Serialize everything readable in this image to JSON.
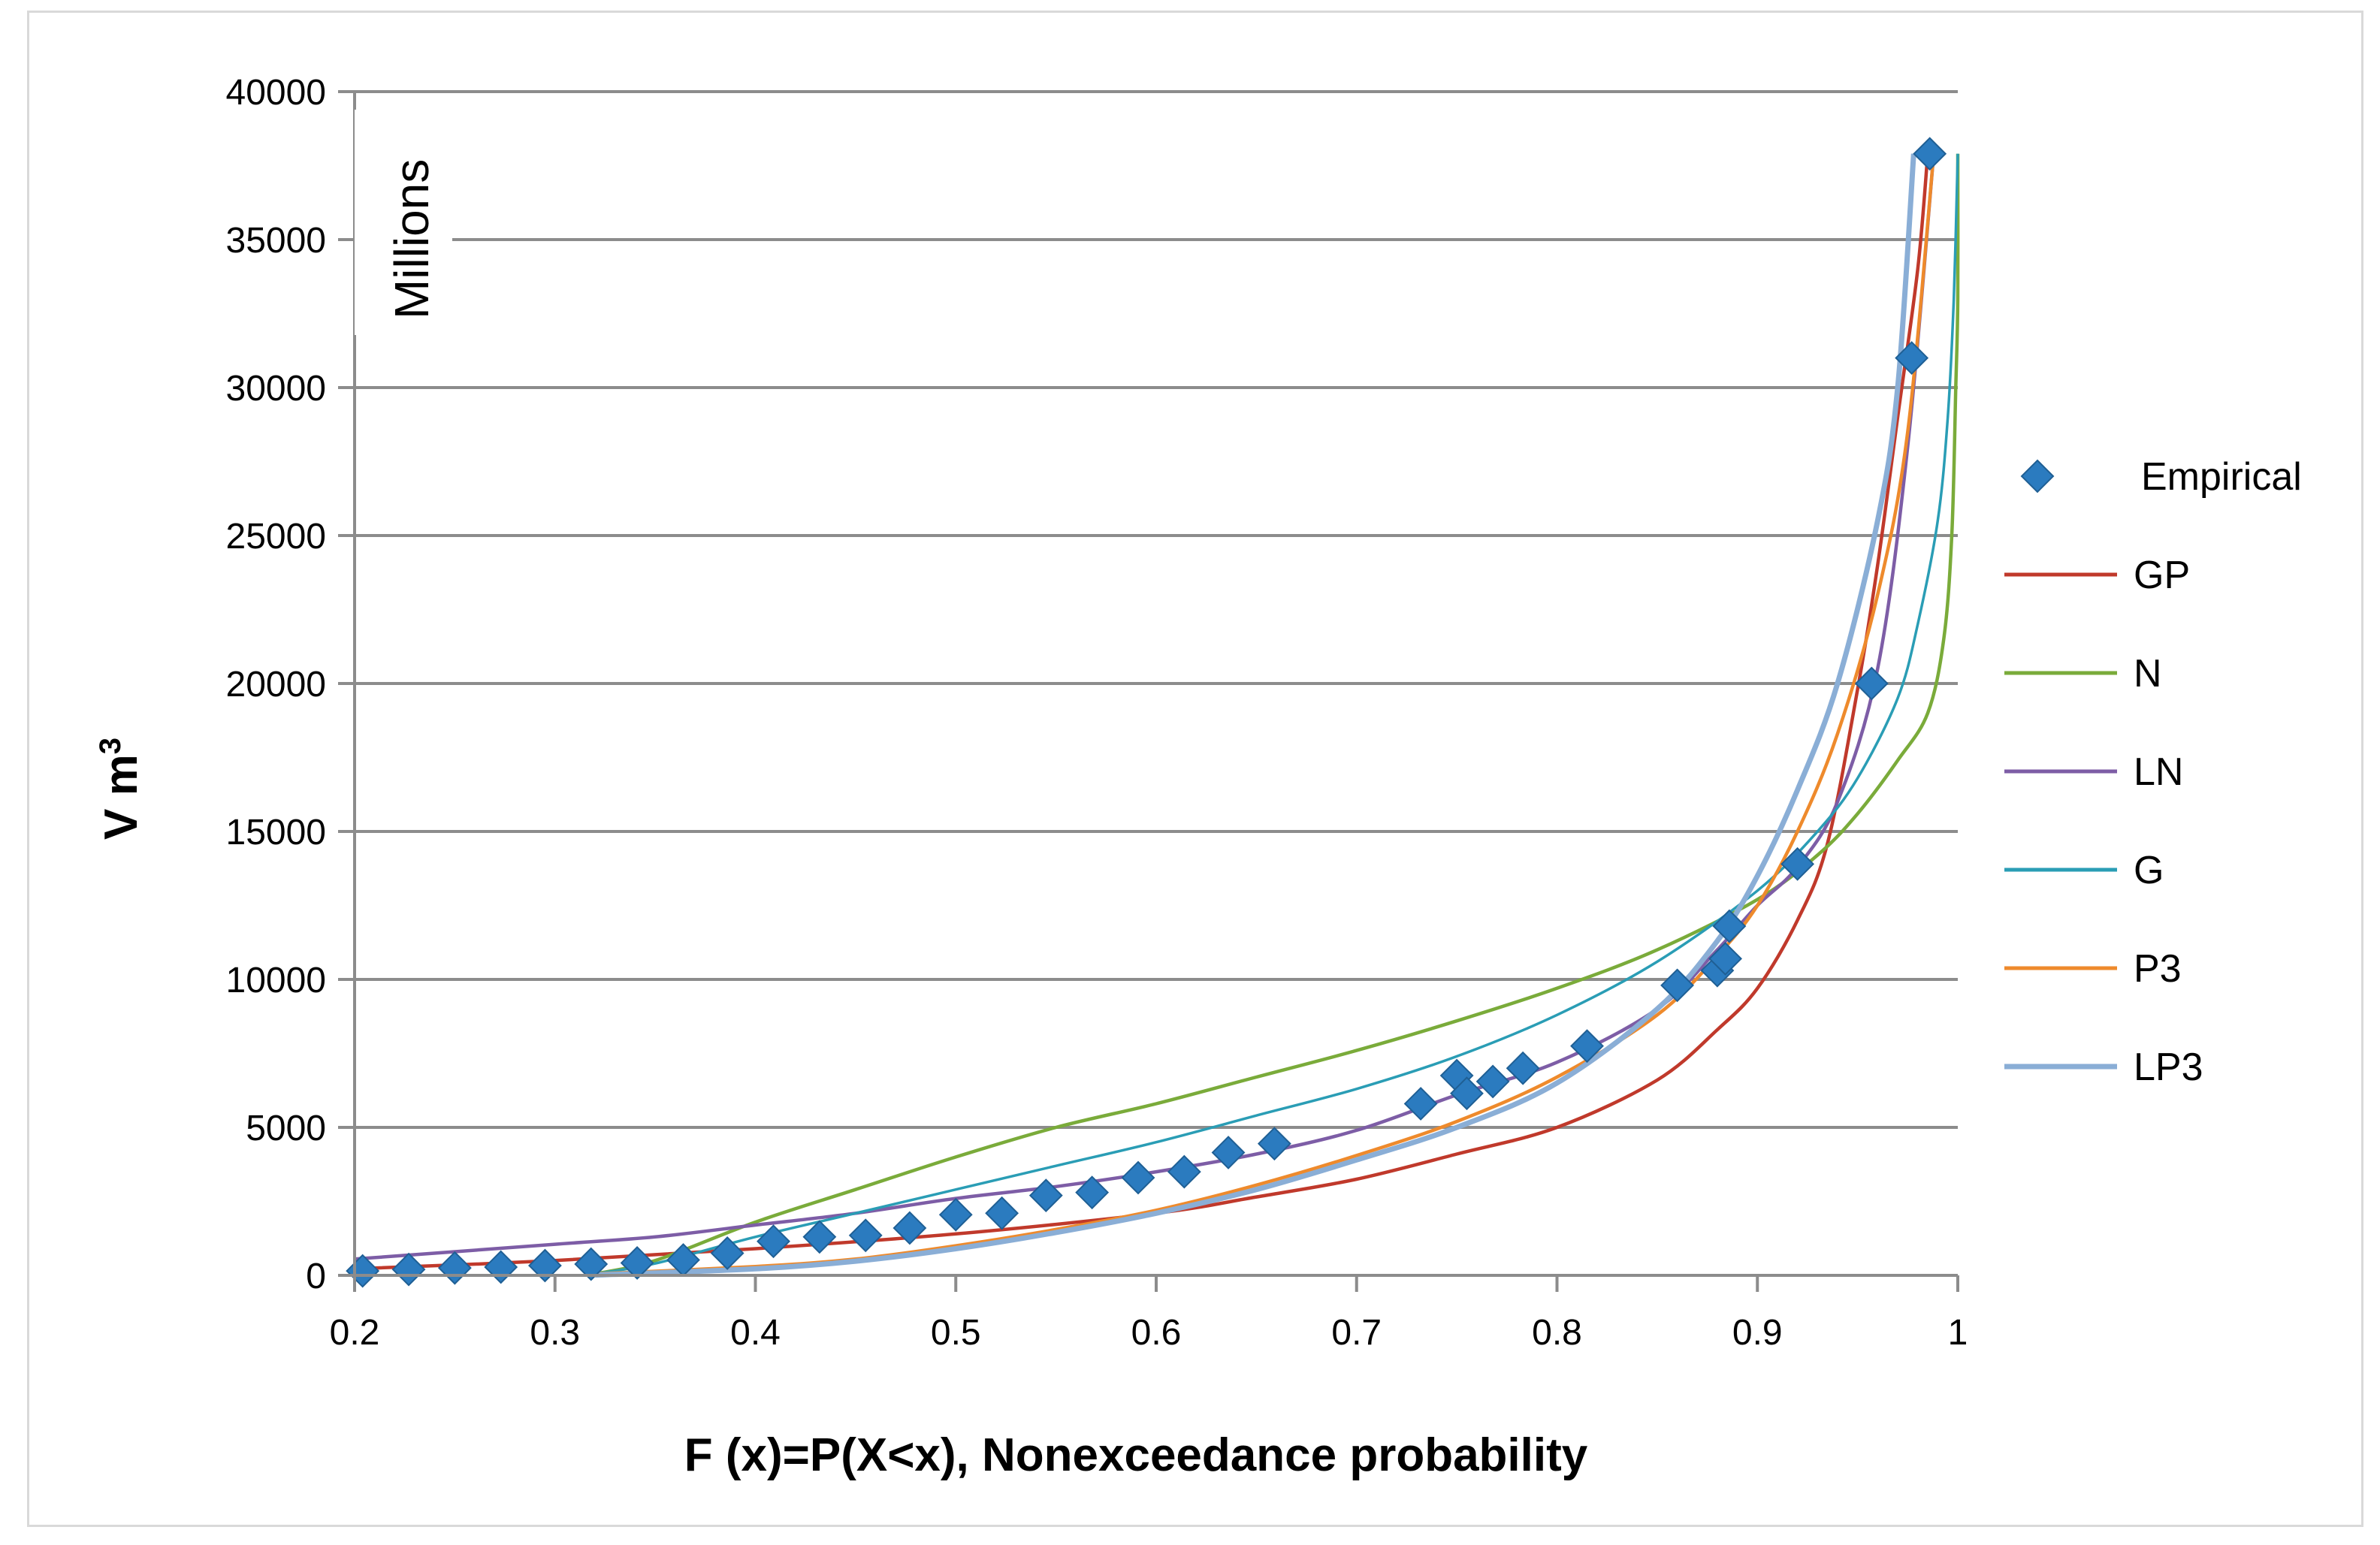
{
  "chart_data": {
    "type": "line",
    "title": "",
    "xlabel": "F (x)=P(X<x), Nonexceedance probability",
    "ylabel_main": "V m",
    "ylabel_sup": "3",
    "y_unit_label": "Millions",
    "xlim": [
      0.2,
      1.0
    ],
    "ylim": [
      0,
      40000
    ],
    "x_ticks": [
      "0.2",
      "0.3",
      "0.4",
      "0.5",
      "0.6",
      "0.7",
      "0.8",
      "0.9",
      "1"
    ],
    "x_tick_values": [
      0.2,
      0.3,
      0.4,
      0.5,
      0.6,
      0.7,
      0.8,
      0.9,
      1.0
    ],
    "y_ticks": [
      "0",
      "5000",
      "10000",
      "15000",
      "20000",
      "25000",
      "30000",
      "35000",
      "40000"
    ],
    "y_tick_values": [
      0,
      5000,
      10000,
      15000,
      20000,
      25000,
      30000,
      35000,
      40000
    ],
    "grid": "horizontal",
    "legend_position": "right",
    "series": [
      {
        "name": "Empirical",
        "kind": "marker",
        "color": "#2b7bbf",
        "points": [
          [
            0.204,
            150
          ],
          [
            0.227,
            200
          ],
          [
            0.25,
            250
          ],
          [
            0.273,
            280
          ],
          [
            0.295,
            330
          ],
          [
            0.318,
            380
          ],
          [
            0.341,
            420
          ],
          [
            0.364,
            520
          ],
          [
            0.386,
            750
          ],
          [
            0.409,
            1150
          ],
          [
            0.432,
            1300
          ],
          [
            0.455,
            1350
          ],
          [
            0.477,
            1600
          ],
          [
            0.5,
            2050
          ],
          [
            0.523,
            2100
          ],
          [
            0.545,
            2700
          ],
          [
            0.568,
            2800
          ],
          [
            0.591,
            3300
          ],
          [
            0.614,
            3500
          ],
          [
            0.636,
            4150
          ],
          [
            0.659,
            4450
          ],
          [
            0.732,
            5800
          ],
          [
            0.75,
            6750
          ],
          [
            0.755,
            6150
          ],
          [
            0.768,
            6550
          ],
          [
            0.783,
            7000
          ],
          [
            0.815,
            7750
          ],
          [
            0.86,
            9800
          ],
          [
            0.88,
            10300
          ],
          [
            0.884,
            10700
          ],
          [
            0.886,
            11800
          ],
          [
            0.92,
            13900
          ],
          [
            0.957,
            20000
          ],
          [
            0.977,
            31000
          ],
          [
            0.986,
            37900
          ]
        ]
      },
      {
        "name": "GP",
        "kind": "line",
        "color": "#c0392b",
        "points": [
          [
            0.2,
            220
          ],
          [
            0.3,
            500
          ],
          [
            0.4,
            900
          ],
          [
            0.5,
            1400
          ],
          [
            0.6,
            2100
          ],
          [
            0.65,
            2650
          ],
          [
            0.7,
            3250
          ],
          [
            0.75,
            4100
          ],
          [
            0.8,
            5000
          ],
          [
            0.85,
            6600
          ],
          [
            0.88,
            8300
          ],
          [
            0.9,
            9700
          ],
          [
            0.92,
            12000
          ],
          [
            0.935,
            14600
          ],
          [
            0.95,
            19800
          ],
          [
            0.96,
            24000
          ],
          [
            0.97,
            29000
          ],
          [
            0.98,
            34000
          ],
          [
            0.985,
            37900
          ]
        ]
      },
      {
        "name": "N",
        "kind": "line",
        "color": "#7aab3a",
        "points": [
          [
            0.32,
            50
          ],
          [
            0.35,
            500
          ],
          [
            0.4,
            1800
          ],
          [
            0.45,
            2900
          ],
          [
            0.5,
            4000
          ],
          [
            0.55,
            5000
          ],
          [
            0.6,
            5800
          ],
          [
            0.65,
            6700
          ],
          [
            0.7,
            7600
          ],
          [
            0.75,
            8600
          ],
          [
            0.8,
            9700
          ],
          [
            0.85,
            11000
          ],
          [
            0.9,
            12700
          ],
          [
            0.93,
            14200
          ],
          [
            0.95,
            15600
          ],
          [
            0.97,
            17400
          ],
          [
            0.985,
            19000
          ],
          [
            0.993,
            21500
          ],
          [
            0.997,
            25000
          ],
          [
            0.999,
            30000
          ],
          [
            1.0,
            33000
          ],
          [
            1.0,
            37900
          ]
        ]
      },
      {
        "name": "LN",
        "kind": "line",
        "color": "#7d5da6",
        "points": [
          [
            0.2,
            550
          ],
          [
            0.25,
            800
          ],
          [
            0.3,
            1050
          ],
          [
            0.35,
            1300
          ],
          [
            0.4,
            1700
          ],
          [
            0.45,
            2100
          ],
          [
            0.5,
            2600
          ],
          [
            0.55,
            3000
          ],
          [
            0.6,
            3500
          ],
          [
            0.65,
            4100
          ],
          [
            0.7,
            4900
          ],
          [
            0.75,
            6100
          ],
          [
            0.8,
            7200
          ],
          [
            0.85,
            9000
          ],
          [
            0.88,
            11000
          ],
          [
            0.9,
            12500
          ],
          [
            0.92,
            13800
          ],
          [
            0.94,
            16000
          ],
          [
            0.96,
            20500
          ],
          [
            0.975,
            28000
          ],
          [
            0.988,
            37900
          ]
        ]
      },
      {
        "name": "G",
        "kind": "line",
        "color": "#2a9db5",
        "points": [
          [
            0.32,
            50
          ],
          [
            0.35,
            400
          ],
          [
            0.4,
            1300
          ],
          [
            0.45,
            2100
          ],
          [
            0.5,
            2900
          ],
          [
            0.55,
            3700
          ],
          [
            0.6,
            4500
          ],
          [
            0.65,
            5400
          ],
          [
            0.7,
            6300
          ],
          [
            0.75,
            7400
          ],
          [
            0.8,
            8800
          ],
          [
            0.85,
            10600
          ],
          [
            0.9,
            13000
          ],
          [
            0.93,
            15000
          ],
          [
            0.95,
            16800
          ],
          [
            0.97,
            19500
          ],
          [
            0.98,
            22000
          ],
          [
            0.99,
            25500
          ],
          [
            0.995,
            29000
          ],
          [
            0.998,
            33000
          ],
          [
            1.0,
            37900
          ]
        ]
      },
      {
        "name": "P3",
        "kind": "line",
        "color": "#ee8a2c",
        "points": [
          [
            0.32,
            50
          ],
          [
            0.4,
            300
          ],
          [
            0.45,
            550
          ],
          [
            0.5,
            1000
          ],
          [
            0.55,
            1550
          ],
          [
            0.6,
            2200
          ],
          [
            0.65,
            3050
          ],
          [
            0.7,
            4050
          ],
          [
            0.75,
            5200
          ],
          [
            0.8,
            6700
          ],
          [
            0.85,
            8800
          ],
          [
            0.88,
            10800
          ],
          [
            0.9,
            12500
          ],
          [
            0.92,
            15000
          ],
          [
            0.94,
            18300
          ],
          [
            0.96,
            23000
          ],
          [
            0.975,
            28500
          ],
          [
            0.988,
            37900
          ]
        ]
      },
      {
        "name": "LP3",
        "kind": "line",
        "color": "#8aaed6",
        "points": [
          [
            0.32,
            10
          ],
          [
            0.4,
            220
          ],
          [
            0.45,
            480
          ],
          [
            0.5,
            900
          ],
          [
            0.55,
            1450
          ],
          [
            0.6,
            2100
          ],
          [
            0.65,
            2900
          ],
          [
            0.7,
            3900
          ],
          [
            0.75,
            5000
          ],
          [
            0.8,
            6500
          ],
          [
            0.85,
            9000
          ],
          [
            0.88,
            11300
          ],
          [
            0.9,
            13500
          ],
          [
            0.92,
            16400
          ],
          [
            0.94,
            20000
          ],
          [
            0.96,
            25500
          ],
          [
            0.97,
            30000
          ],
          [
            0.978,
            37900
          ]
        ]
      }
    ]
  }
}
